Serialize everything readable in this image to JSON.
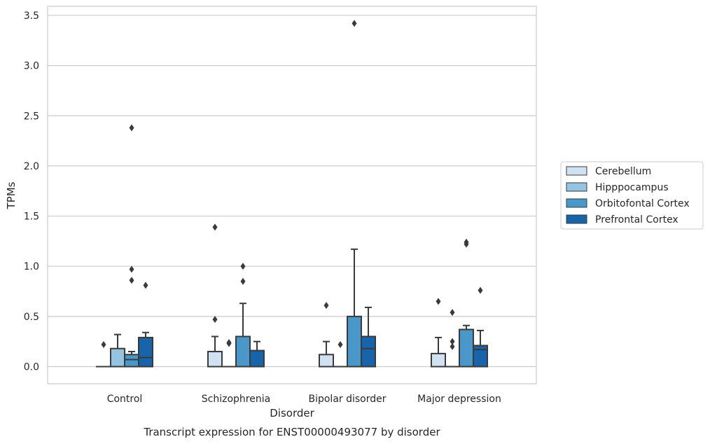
{
  "chart_data": {
    "type": "box",
    "title": "",
    "caption": "Transcript expression for ENST00000493077 by disorder",
    "xlabel": "Disorder",
    "ylabel": "TPMs",
    "ylim": [
      -0.17,
      3.6
    ],
    "yticks": [
      "0.0",
      "0.5",
      "1.0",
      "1.5",
      "2.0",
      "2.5",
      "3.0",
      "3.5"
    ],
    "grid": "horizontal",
    "legend_position": "right",
    "categories": [
      "Control",
      "Schizophrenia",
      "Bipolar disorder",
      "Major depression"
    ],
    "series": [
      {
        "name": "Cerebellum",
        "color": "#d0e1f2",
        "boxes": [
          {
            "q1": 0.0,
            "median": 0.0,
            "q3": 0.0,
            "whisker_low": 0.0,
            "whisker_high": 0.0,
            "outliers": [
              0.22
            ]
          },
          {
            "q1": 0.0,
            "median": 0.0,
            "q3": 0.15,
            "whisker_low": 0.0,
            "whisker_high": 0.3,
            "outliers": [
              0.47,
              1.39
            ]
          },
          {
            "q1": 0.0,
            "median": 0.0,
            "q3": 0.12,
            "whisker_low": 0.0,
            "whisker_high": 0.25,
            "outliers": [
              0.61
            ]
          },
          {
            "q1": 0.0,
            "median": 0.0,
            "q3": 0.13,
            "whisker_low": 0.0,
            "whisker_high": 0.29,
            "outliers": [
              0.65
            ]
          }
        ]
      },
      {
        "name": "Hipppocampus",
        "color": "#94c4df",
        "boxes": [
          {
            "q1": 0.0,
            "median": 0.0,
            "q3": 0.18,
            "whisker_low": 0.0,
            "whisker_high": 0.32,
            "outliers": []
          },
          {
            "q1": 0.0,
            "median": 0.0,
            "q3": 0.0,
            "whisker_low": 0.0,
            "whisker_high": 0.0,
            "outliers": [
              0.23,
              0.24
            ]
          },
          {
            "q1": 0.0,
            "median": 0.0,
            "q3": 0.0,
            "whisker_low": 0.0,
            "whisker_high": 0.0,
            "outliers": [
              0.22
            ]
          },
          {
            "q1": 0.0,
            "median": 0.0,
            "q3": 0.0,
            "whisker_low": 0.0,
            "whisker_high": 0.0,
            "outliers": [
              0.2,
              0.25,
              0.54
            ]
          }
        ]
      },
      {
        "name": "Orbitofontal Cortex",
        "color": "#4a98c9",
        "boxes": [
          {
            "q1": 0.0,
            "median": 0.07,
            "q3": 0.12,
            "whisker_low": 0.0,
            "whisker_high": 0.15,
            "outliers": [
              0.86,
              0.97,
              2.38
            ]
          },
          {
            "q1": 0.0,
            "median": 0.0,
            "q3": 0.3,
            "whisker_low": 0.0,
            "whisker_high": 0.63,
            "outliers": [
              0.85,
              1.0
            ]
          },
          {
            "q1": 0.0,
            "median": 0.0,
            "q3": 0.5,
            "whisker_low": 0.0,
            "whisker_high": 1.17,
            "outliers": [
              3.42
            ]
          },
          {
            "q1": 0.0,
            "median": 0.0,
            "q3": 0.37,
            "whisker_low": 0.0,
            "whisker_high": 0.41,
            "outliers": [
              1.22,
              1.24
            ]
          }
        ]
      },
      {
        "name": "Prefrontal Cortex",
        "color": "#1764ab",
        "boxes": [
          {
            "q1": 0.0,
            "median": 0.09,
            "q3": 0.29,
            "whisker_low": 0.0,
            "whisker_high": 0.34,
            "outliers": [
              0.81
            ]
          },
          {
            "q1": 0.0,
            "median": 0.0,
            "q3": 0.16,
            "whisker_low": 0.0,
            "whisker_high": 0.25,
            "outliers": []
          },
          {
            "q1": 0.0,
            "median": 0.18,
            "q3": 0.3,
            "whisker_low": 0.0,
            "whisker_high": 0.59,
            "outliers": []
          },
          {
            "q1": 0.0,
            "median": 0.17,
            "q3": 0.21,
            "whisker_low": 0.0,
            "whisker_high": 0.36,
            "outliers": [
              0.76
            ]
          }
        ]
      }
    ]
  }
}
